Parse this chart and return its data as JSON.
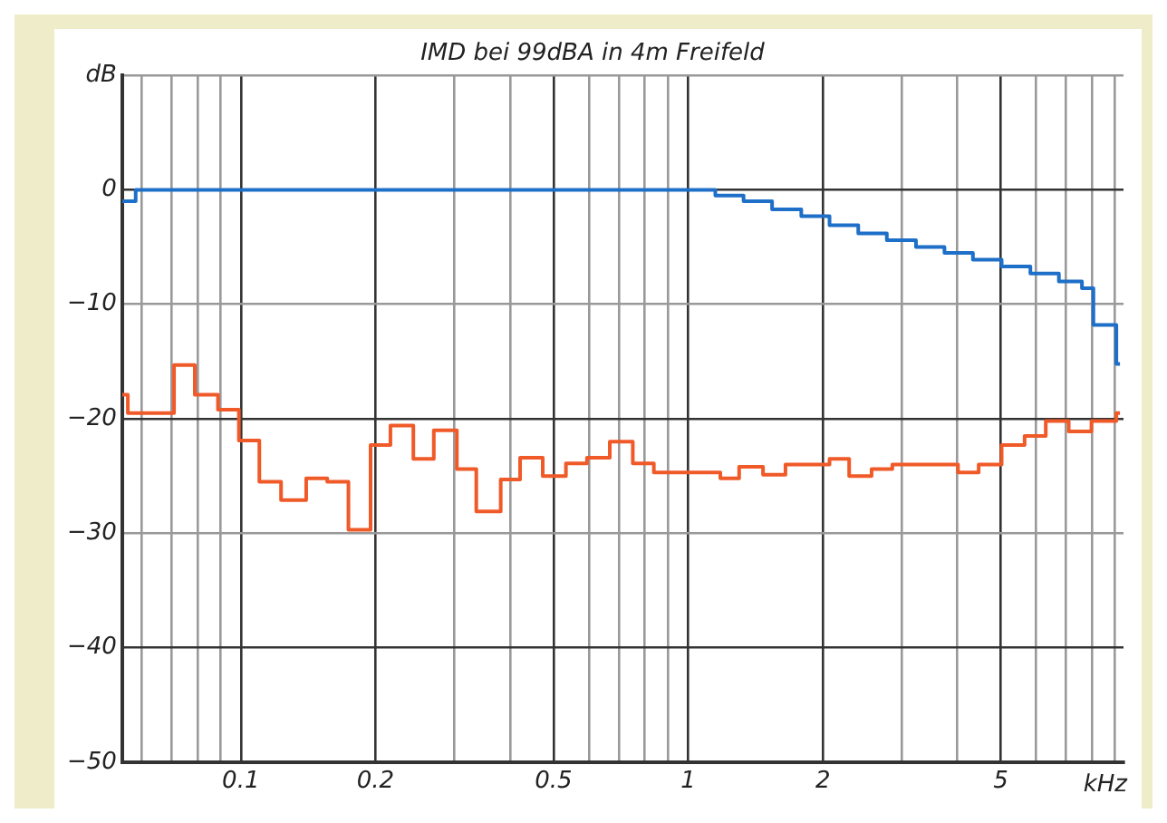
{
  "chart_data": {
    "type": "step",
    "title": "IMD bei 99dBA in 4m Freifeld",
    "xlabel": "kHz",
    "log": "x",
    "grid": true,
    "legend": false,
    "xlim": [
      0.0543,
      9.4
    ],
    "ylim": [
      -50,
      10
    ],
    "xticks": [
      {
        "value": 0.06,
        "label": null
      },
      {
        "value": 0.07,
        "label": null
      },
      {
        "value": 0.08,
        "label": null
      },
      {
        "value": 0.09,
        "label": null
      },
      0.1,
      0.2,
      {
        "value": 0.3,
        "label": null
      },
      {
        "value": 0.4,
        "label": null
      },
      0.5,
      {
        "value": 0.6,
        "label": null
      },
      {
        "value": 0.7,
        "label": null
      },
      {
        "value": 0.8,
        "label": null
      },
      {
        "value": 0.9,
        "label": null
      },
      1,
      2,
      {
        "value": 3,
        "label": null
      },
      {
        "value": 4,
        "label": null
      },
      5,
      {
        "value": 6,
        "label": null
      },
      {
        "value": 7,
        "label": null
      },
      {
        "value": 8,
        "label": null
      },
      {
        "value": 9,
        "label": null
      }
    ],
    "yticks": [
      -50,
      -40,
      -30,
      -20,
      -10,
      0,
      {
        "value": 10,
        "label": "dB"
      }
    ],
    "series": [
      {
        "color": "#1e6fc8",
        "x": [
          0.0543,
          0.0582,
          0.943,
          1.15,
          1.33,
          1.54,
          1.79,
          2.07,
          2.4,
          2.78,
          3.23,
          3.74,
          4.33,
          5.02,
          5.82,
          6.74,
          7.59,
          8.05,
          9.06,
          9.23
        ],
        "values": [
          -1,
          0,
          0,
          -0.5,
          -1,
          -1.7,
          -2.3,
          -3.1,
          -3.8,
          -4.4,
          -5,
          -5.5,
          -6.1,
          -6.7,
          -7.3,
          -8,
          -8.6,
          -11.8,
          -15.2,
          -15.2
        ]
      },
      {
        "color": "#f05a28",
        "x": [
          0.0543,
          0.0559,
          0.0709,
          0.0789,
          0.0889,
          0.099,
          0.11,
          0.123,
          0.14,
          0.156,
          0.174,
          0.195,
          0.216,
          0.243,
          0.27,
          0.304,
          0.336,
          0.381,
          0.421,
          0.473,
          0.533,
          0.594,
          0.668,
          0.752,
          0.838,
          1.18,
          1.3,
          1.47,
          1.65,
          2.07,
          2.29,
          2.57,
          2.86,
          4.01,
          4.46,
          5.02,
          5.65,
          6.3,
          7.09,
          7.97,
          9.06,
          9.23
        ],
        "values": [
          -17.9,
          -19.5,
          -15.3,
          -17.9,
          -19.2,
          -21.9,
          -25.5,
          -27.1,
          -25.2,
          -25.5,
          -29.7,
          -22.3,
          -20.6,
          -23.5,
          -21,
          -24.4,
          -28.1,
          -25.3,
          -23.4,
          -25,
          -23.9,
          -23.4,
          -22,
          -23.9,
          -24.7,
          -25.2,
          -24.2,
          -24.9,
          -24,
          -23.5,
          -25,
          -24.4,
          -24,
          -24.7,
          -24,
          -22.3,
          -21.5,
          -20.2,
          -21.1,
          -20.2,
          -19.5,
          -19.5
        ]
      }
    ]
  }
}
